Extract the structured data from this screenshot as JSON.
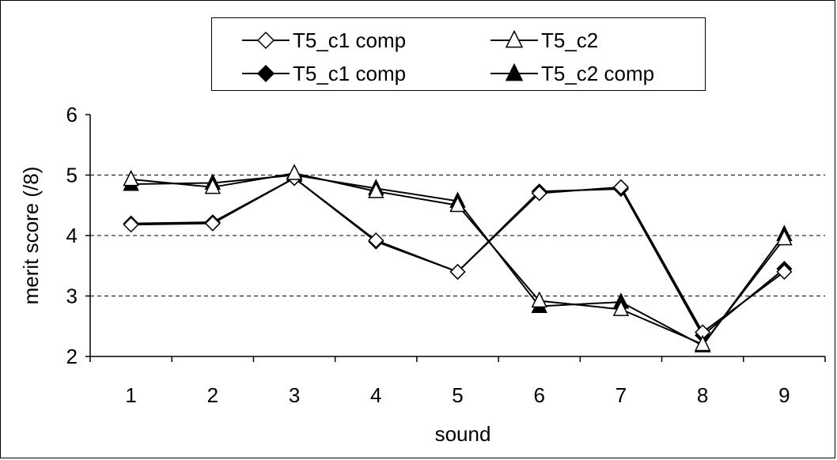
{
  "chart_data": {
    "type": "line",
    "title": "",
    "xlabel": "sound",
    "ylabel": "merit score (/8)",
    "categories": [
      "1",
      "2",
      "3",
      "4",
      "5",
      "6",
      "7",
      "8",
      "9"
    ],
    "ylim": [
      2,
      6
    ],
    "yticks": [
      2,
      3,
      4,
      5,
      6
    ],
    "grid": "dashed horizontal at 3, 4, 5",
    "legend_position": "top",
    "series": [
      {
        "name": "T5_c1 comp",
        "marker": "diamond-open",
        "color": "#000000",
        "values": [
          4.18,
          4.2,
          4.95,
          3.92,
          3.4,
          4.7,
          4.8,
          2.4,
          3.4
        ]
      },
      {
        "name": "T5_c2",
        "marker": "triangle-open",
        "color": "#000000",
        "values": [
          4.93,
          4.8,
          5.03,
          4.73,
          4.5,
          2.92,
          2.78,
          2.2,
          3.95
        ]
      },
      {
        "name": "T5_c1 comp",
        "marker": "diamond-filled",
        "color": "#000000",
        "values": [
          4.2,
          4.22,
          4.95,
          3.9,
          3.4,
          4.73,
          4.77,
          2.35,
          3.45
        ]
      },
      {
        "name": "T5_c2 comp",
        "marker": "triangle-filled",
        "color": "#000000",
        "values": [
          4.85,
          4.87,
          5.0,
          4.78,
          4.57,
          2.83,
          2.9,
          2.18,
          4.02
        ]
      }
    ]
  }
}
